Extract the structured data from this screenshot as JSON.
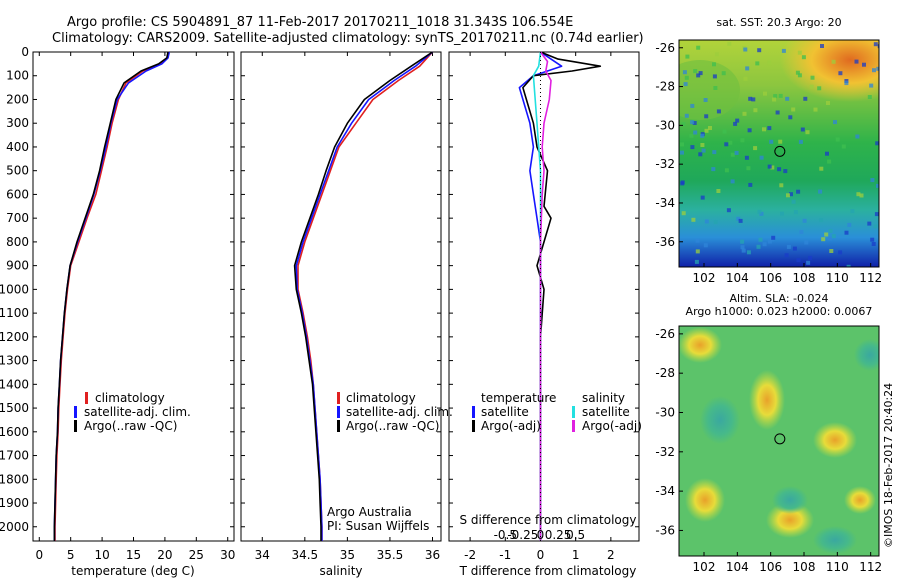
{
  "header": {
    "line1": "Argo profile: CS 5904891_87 11-Feb-2017 20170211_1018 31.343S 106.554E",
    "line2": "Climatology: CARS2009. Satellite-adjusted climatology: synTS_20170211.nc (0.74d earlier)"
  },
  "side_label": "©IMOS 18-Feb-2017 20:40:24",
  "colors": {
    "climatology": "#e02020",
    "satellite": "#1515ff",
    "argo": "#000000",
    "sal_satellite": "#22e0e0",
    "sal_argo": "#e020e0"
  },
  "chart_data": [
    {
      "id": "temperature",
      "type": "line",
      "xlabel": "temperature (deg C)",
      "xlim": [
        -1,
        31
      ],
      "xticks": [
        0,
        5,
        10,
        15,
        20,
        25,
        30
      ],
      "ylim": [
        0,
        2060
      ],
      "yticks": [
        0,
        100,
        200,
        300,
        400,
        500,
        600,
        700,
        800,
        900,
        1000,
        1100,
        1200,
        1300,
        1400,
        1500,
        1600,
        1700,
        1800,
        1900,
        2000
      ],
      "legend": [
        "climatology",
        "satellite-adj. clim.",
        "Argo(..raw -QC)"
      ],
      "series": [
        {
          "name": "climatology",
          "color_key": "climatology",
          "points": [
            [
              20.6,
              0
            ],
            [
              20.4,
              25
            ],
            [
              19.3,
              50
            ],
            [
              16.5,
              80
            ],
            [
              13.8,
              130
            ],
            [
              12.6,
              200
            ],
            [
              11.6,
              300
            ],
            [
              10.8,
              400
            ],
            [
              9.9,
              500
            ],
            [
              9.0,
              600
            ],
            [
              7.6,
              700
            ],
            [
              6.3,
              800
            ],
            [
              5.0,
              900
            ],
            [
              4.5,
              1000
            ],
            [
              4.1,
              1100
            ],
            [
              3.8,
              1200
            ],
            [
              3.5,
              1300
            ],
            [
              3.3,
              1400
            ],
            [
              3.1,
              1500
            ],
            [
              3.0,
              1600
            ],
            [
              2.8,
              1700
            ],
            [
              2.7,
              1800
            ],
            [
              2.6,
              1900
            ],
            [
              2.5,
              2000
            ],
            [
              2.5,
              2060
            ]
          ]
        },
        {
          "name": "satellite-adj. clim.",
          "color_key": "satellite",
          "points": [
            [
              20.7,
              0
            ],
            [
              20.5,
              25
            ],
            [
              19.5,
              50
            ],
            [
              17.0,
              80
            ],
            [
              14.2,
              130
            ],
            [
              12.4,
              200
            ],
            [
              11.4,
              300
            ],
            [
              10.6,
              400
            ],
            [
              9.7,
              500
            ],
            [
              8.7,
              600
            ],
            [
              7.4,
              700
            ],
            [
              6.1,
              800
            ],
            [
              4.9,
              900
            ],
            [
              4.4,
              1000
            ],
            [
              4.0,
              1100
            ],
            [
              3.7,
              1200
            ],
            [
              3.4,
              1300
            ],
            [
              3.2,
              1400
            ],
            [
              3.0,
              1500
            ],
            [
              2.9,
              1600
            ],
            [
              2.7,
              1700
            ],
            [
              2.6,
              1800
            ],
            [
              2.5,
              1900
            ],
            [
              2.4,
              2000
            ],
            [
              2.4,
              2060
            ]
          ]
        },
        {
          "name": "Argo(..raw -QC)",
          "color_key": "argo",
          "points": [
            [
              20.5,
              0
            ],
            [
              20.3,
              25
            ],
            [
              19.0,
              50
            ],
            [
              16.2,
              80
            ],
            [
              13.5,
              130
            ],
            [
              12.2,
              200
            ],
            [
              11.3,
              300
            ],
            [
              10.4,
              400
            ],
            [
              9.6,
              500
            ],
            [
              8.6,
              600
            ],
            [
              7.3,
              700
            ],
            [
              6.0,
              800
            ],
            [
              4.9,
              900
            ],
            [
              4.4,
              1000
            ],
            [
              4.0,
              1100
            ],
            [
              3.7,
              1200
            ],
            [
              3.4,
              1300
            ],
            [
              3.2,
              1400
            ],
            [
              3.0,
              1500
            ],
            [
              2.9,
              1600
            ],
            [
              2.7,
              1700
            ],
            [
              2.6,
              1800
            ],
            [
              2.5,
              1900
            ],
            [
              2.4,
              2000
            ],
            [
              2.4,
              2060
            ]
          ]
        }
      ]
    },
    {
      "id": "salinity",
      "type": "line",
      "xlabel": "salinity",
      "xlim": [
        33.75,
        36.1
      ],
      "xticks": [
        34,
        34.5,
        35,
        35.5,
        36
      ],
      "xticklabels": [
        "34",
        "34.5",
        "35",
        "35.5",
        "36"
      ],
      "ylim": [
        0,
        2060
      ],
      "legend": [
        "climatology",
        "satellite-adj. clim.",
        "Argo(..raw -QC)"
      ],
      "annotation": [
        "Argo Australia",
        "PI: Susan Wijffels"
      ],
      "series": [
        {
          "name": "climatology",
          "color_key": "climatology",
          "points": [
            [
              36.0,
              0
            ],
            [
              35.85,
              60
            ],
            [
              35.6,
              120
            ],
            [
              35.3,
              200
            ],
            [
              35.1,
              300
            ],
            [
              34.9,
              400
            ],
            [
              34.8,
              500
            ],
            [
              34.7,
              600
            ],
            [
              34.6,
              700
            ],
            [
              34.5,
              800
            ],
            [
              34.42,
              900
            ],
            [
              34.42,
              1000
            ],
            [
              34.48,
              1100
            ],
            [
              34.53,
              1200
            ],
            [
              34.57,
              1300
            ],
            [
              34.6,
              1400
            ],
            [
              34.62,
              1500
            ],
            [
              34.64,
              1600
            ],
            [
              34.66,
              1700
            ],
            [
              34.68,
              1800
            ],
            [
              34.69,
              1900
            ],
            [
              34.7,
              2000
            ],
            [
              34.7,
              2060
            ]
          ]
        },
        {
          "name": "satellite-adj. clim.",
          "color_key": "satellite",
          "points": [
            [
              36.0,
              0
            ],
            [
              35.8,
              60
            ],
            [
              35.55,
              120
            ],
            [
              35.25,
              200
            ],
            [
              35.05,
              300
            ],
            [
              34.88,
              400
            ],
            [
              34.78,
              500
            ],
            [
              34.68,
              600
            ],
            [
              34.58,
              700
            ],
            [
              34.48,
              800
            ],
            [
              34.4,
              900
            ],
            [
              34.41,
              1000
            ],
            [
              34.47,
              1100
            ],
            [
              34.52,
              1200
            ],
            [
              34.56,
              1300
            ],
            [
              34.6,
              1400
            ],
            [
              34.62,
              1500
            ],
            [
              34.64,
              1600
            ],
            [
              34.66,
              1700
            ],
            [
              34.68,
              1800
            ],
            [
              34.69,
              1900
            ],
            [
              34.7,
              2000
            ],
            [
              34.7,
              2060
            ]
          ]
        },
        {
          "name": "Argo(..raw -QC)",
          "color_key": "argo",
          "points": [
            [
              36.0,
              0
            ],
            [
              35.75,
              60
            ],
            [
              35.5,
              120
            ],
            [
              35.2,
              200
            ],
            [
              35.0,
              300
            ],
            [
              34.85,
              400
            ],
            [
              34.75,
              500
            ],
            [
              34.66,
              600
            ],
            [
              34.56,
              700
            ],
            [
              34.46,
              800
            ],
            [
              34.38,
              900
            ],
            [
              34.4,
              1000
            ],
            [
              34.46,
              1100
            ],
            [
              34.51,
              1200
            ],
            [
              34.55,
              1300
            ],
            [
              34.59,
              1400
            ],
            [
              34.61,
              1500
            ],
            [
              34.63,
              1600
            ],
            [
              34.65,
              1700
            ],
            [
              34.67,
              1800
            ],
            [
              34.68,
              1900
            ],
            [
              34.69,
              2000
            ],
            [
              34.69,
              2060
            ]
          ]
        }
      ]
    },
    {
      "id": "difference",
      "type": "line",
      "xlabel": "T difference from climatology",
      "xlabel_top": "S difference from climatology",
      "xlim": [
        -2.6,
        2.8
      ],
      "xticks": [
        -2,
        -1,
        0,
        1,
        2
      ],
      "sticks": [
        -0.5,
        -0.25,
        0,
        0.25,
        0.5
      ],
      "ylim": [
        0,
        2060
      ],
      "legend_left": [
        "temperature",
        "satellite",
        "Argo(-adj)"
      ],
      "legend_right": [
        "salinity",
        "satellite",
        "Argo(-adj)"
      ],
      "series": [
        {
          "name": "T satellite",
          "color_key": "satellite",
          "points": [
            [
              0,
              0
            ],
            [
              0.3,
              30
            ],
            [
              0.6,
              60
            ],
            [
              -0.2,
              100
            ],
            [
              -0.6,
              150
            ],
            [
              -0.5,
              200
            ],
            [
              -0.3,
              300
            ],
            [
              -0.2,
              400
            ],
            [
              -0.3,
              500
            ],
            [
              -0.2,
              600
            ],
            [
              -0.1,
              700
            ],
            [
              0,
              800
            ],
            [
              0,
              900
            ],
            [
              0,
              1000
            ],
            [
              0,
              1200
            ],
            [
              0,
              1500
            ],
            [
              0,
              2060
            ]
          ]
        },
        {
          "name": "T Argo(-adj)",
          "color_key": "argo",
          "points": [
            [
              0,
              0
            ],
            [
              0.5,
              30
            ],
            [
              1.7,
              60
            ],
            [
              0.9,
              80
            ],
            [
              -0.2,
              100
            ],
            [
              -0.5,
              150
            ],
            [
              -0.4,
              200
            ],
            [
              -0.2,
              300
            ],
            [
              -0.1,
              400
            ],
            [
              0.2,
              500
            ],
            [
              0.1,
              650
            ],
            [
              0.3,
              700
            ],
            [
              0.1,
              800
            ],
            [
              -0.1,
              900
            ],
            [
              0.1,
              1000
            ],
            [
              0,
              1200
            ],
            [
              0,
              1500
            ],
            [
              0,
              2060
            ]
          ]
        },
        {
          "name": "S satellite",
          "color_key": "sal_satellite",
          "points": [
            [
              0,
              0
            ],
            [
              -0.05,
              60
            ],
            [
              -0.2,
              100
            ],
            [
              -0.15,
              200
            ],
            [
              -0.1,
              300
            ],
            [
              -0.05,
              400
            ],
            [
              0,
              500
            ],
            [
              0,
              800
            ],
            [
              0,
              1000
            ],
            [
              0,
              2060
            ]
          ]
        },
        {
          "name": "S Argo(-adj)",
          "color_key": "sal_argo",
          "points": [
            [
              0,
              0
            ],
            [
              0.2,
              40
            ],
            [
              0.15,
              80
            ],
            [
              0.3,
              120
            ],
            [
              0.25,
              200
            ],
            [
              0.1,
              300
            ],
            [
              0.05,
              400
            ],
            [
              0.1,
              500
            ],
            [
              0.05,
              600
            ],
            [
              0,
              800
            ],
            [
              0,
              1000
            ],
            [
              0,
              2060
            ]
          ]
        }
      ]
    },
    {
      "id": "sst_map",
      "type": "heatmap",
      "title": "sat. SST: 20.3 Argo: 20",
      "xlim": [
        100.5,
        112.5
      ],
      "ylim": [
        -37.3,
        -25.6
      ],
      "xticks": [
        102,
        104,
        106,
        108,
        110,
        112
      ],
      "yticks": [
        -26,
        -28,
        -30,
        -32,
        -34,
        -36
      ],
      "marker": [
        106.55,
        -31.34
      ]
    },
    {
      "id": "sla_map",
      "type": "heatmap",
      "title": "Altim. SLA: -0.024",
      "subtitle": "Argo h1000: 0.023 h2000: 0.0067",
      "xlim": [
        100.5,
        112.5
      ],
      "ylim": [
        -37.3,
        -25.6
      ],
      "xticks": [
        102,
        104,
        106,
        108,
        110,
        112
      ],
      "yticks": [
        -26,
        -28,
        -30,
        -32,
        -34,
        -36
      ],
      "marker": [
        106.55,
        -31.34
      ]
    }
  ]
}
